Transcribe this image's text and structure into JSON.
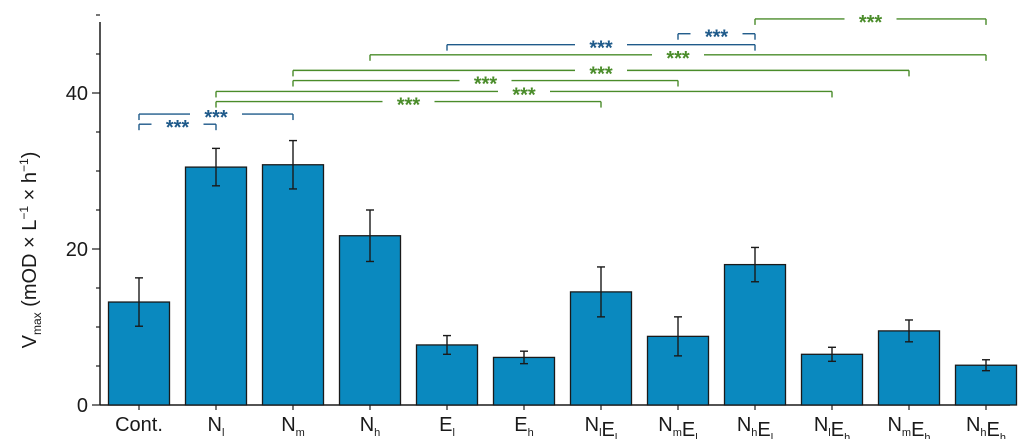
{
  "chart_data": {
    "type": "bar",
    "title": "",
    "xlabel": "",
    "ylabel": {
      "main": "V",
      "sub": "max",
      "unit_parts": [
        " (mOD × L",
        "−1",
        " × h",
        "−1",
        ")"
      ]
    },
    "ylim": [
      0,
      50
    ],
    "yticks": [
      0,
      20,
      40
    ],
    "grid": false,
    "legend": "none",
    "bar_color": "#0a89bf",
    "bar_edge_color": "#1a1a1a",
    "categories": [
      {
        "id": "cont",
        "base": "Cont.",
        "parts": []
      },
      {
        "id": "nl",
        "base": "",
        "parts": [
          [
            "N",
            "l"
          ]
        ]
      },
      {
        "id": "nm",
        "base": "",
        "parts": [
          [
            "N",
            "m"
          ]
        ]
      },
      {
        "id": "nh",
        "base": "",
        "parts": [
          [
            "N",
            "h"
          ]
        ]
      },
      {
        "id": "el",
        "base": "",
        "parts": [
          [
            "E",
            "l"
          ]
        ]
      },
      {
        "id": "eh",
        "base": "",
        "parts": [
          [
            "E",
            "h"
          ]
        ]
      },
      {
        "id": "nlel",
        "base": "",
        "parts": [
          [
            "N",
            "l"
          ],
          [
            "E",
            "l"
          ]
        ]
      },
      {
        "id": "nmel",
        "base": "",
        "parts": [
          [
            "N",
            "m"
          ],
          [
            "E",
            "l"
          ]
        ]
      },
      {
        "id": "nhel",
        "base": "",
        "parts": [
          [
            "N",
            "h"
          ],
          [
            "E",
            "l"
          ]
        ]
      },
      {
        "id": "nleh",
        "base": "",
        "parts": [
          [
            "N",
            "l"
          ],
          [
            "E",
            "h"
          ]
        ]
      },
      {
        "id": "nmeh",
        "base": "",
        "parts": [
          [
            "N",
            "m"
          ],
          [
            "E",
            "h"
          ]
        ]
      },
      {
        "id": "nheh",
        "base": "",
        "parts": [
          [
            "N",
            "h"
          ],
          [
            "E",
            "h"
          ]
        ]
      }
    ],
    "values": [
      13.2,
      30.5,
      30.8,
      21.7,
      7.7,
      6.1,
      14.5,
      8.8,
      18.0,
      6.5,
      9.5,
      5.1
    ],
    "errors": [
      3.1,
      2.4,
      3.1,
      3.3,
      1.2,
      0.8,
      3.2,
      2.5,
      2.2,
      0.9,
      1.4,
      0.7
    ],
    "significance": [
      {
        "from": 0,
        "to": 1,
        "level": 36.0,
        "label": "***",
        "color": "#1f5a8a"
      },
      {
        "from": 0,
        "to": 2,
        "level": 37.3,
        "label": "***",
        "color": "#1f5a8a"
      },
      {
        "from": 1,
        "to": 6,
        "level": 38.9,
        "label": "***",
        "color": "#4a8c2a"
      },
      {
        "from": 1,
        "to": 9,
        "level": 40.2,
        "label": "***",
        "color": "#4a8c2a"
      },
      {
        "from": 2,
        "to": 7,
        "level": 41.6,
        "label": "***",
        "color": "#4a8c2a"
      },
      {
        "from": 2,
        "to": 10,
        "level": 42.9,
        "label": "***",
        "color": "#4a8c2a"
      },
      {
        "from": 3,
        "to": 11,
        "level": 44.9,
        "label": "***",
        "color": "#4a8c2a"
      },
      {
        "from": 4,
        "to": 8,
        "level": 46.2,
        "label": "***",
        "color": "#1f5a8a"
      },
      {
        "from": 7,
        "to": 8,
        "level": 47.6,
        "label": "***",
        "color": "#1f5a8a"
      },
      {
        "from": 8,
        "to": 11,
        "level": 49.5,
        "label": "***",
        "color": "#4a8c2a"
      }
    ]
  }
}
